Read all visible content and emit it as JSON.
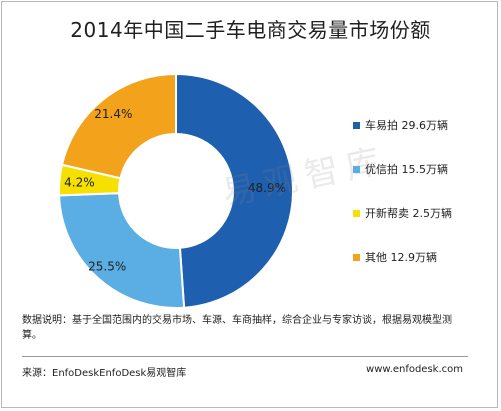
{
  "title": "2014年中国二手车电商交易量市场份额",
  "chart_data": {
    "type": "pie",
    "title": "2014年中国二手车电商交易量市场份额",
    "style": "donut",
    "categories": [
      "车易拍",
      "优信拍",
      "开新帮卖",
      "其他"
    ],
    "values": [
      48.9,
      25.5,
      4.2,
      21.4
    ],
    "volumes": [
      "29.6万辆",
      "15.5万辆",
      "2.5万辆",
      "12.9万辆"
    ],
    "slice_labels": [
      "48.9%",
      "25.5%",
      "4.2%",
      "21.4%"
    ],
    "colors": [
      "#1f5fb0",
      "#5aaee3",
      "#f5e000",
      "#f2a21b"
    ],
    "legend": [
      {
        "label": "车易拍 29.6万辆",
        "color": "#1f5fb0"
      },
      {
        "label": "优信拍 15.5万辆",
        "color": "#5aaee3"
      },
      {
        "label": "开新帮卖 2.5万辆",
        "color": "#f5e000"
      },
      {
        "label": "其他 12.9万辆",
        "color": "#f2a21b"
      }
    ],
    "legend_position": "right"
  },
  "watermark": "易观智库",
  "note": "数据说明：基于全国范围内的交易市场、车源、车商抽样，综合企业与专家访谈，根据易观模型测算。",
  "source_left": "来源：EnfoDeskEnfoDesk易观智库",
  "source_right": "www.enfodesk.com"
}
